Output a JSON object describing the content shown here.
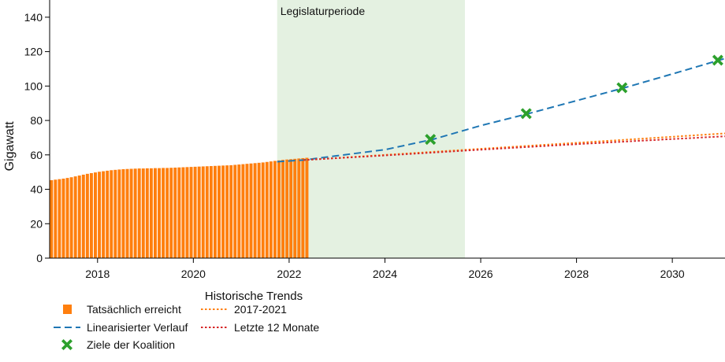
{
  "chart_data": {
    "type": "bar",
    "title": "",
    "xlabel": "",
    "ylabel": "Gigawatt",
    "xlim": [
      2017.0,
      2031.1
    ],
    "ylim": [
      0,
      150
    ],
    "yticks": [
      0,
      20,
      40,
      60,
      80,
      100,
      120,
      140
    ],
    "xticks": [
      2018,
      2020,
      2022,
      2024,
      2026,
      2028,
      2030
    ],
    "grid": false,
    "legend_title": "Historische Trends",
    "legend_position": "bottom-left",
    "shaded_region": {
      "label": "Legislaturperiode",
      "x_start": 2021.75,
      "x_end": 2025.67,
      "color": "#e4f1e1"
    },
    "series": [
      {
        "name": "Tatsächlich erreicht",
        "kind": "bar",
        "color": "#ff7f0e",
        "x_start": 2017.0,
        "x_step": 0.08333,
        "values": [
          45.3,
          45.6,
          45.9,
          46.2,
          46.6,
          47.0,
          47.5,
          48.0,
          48.5,
          49.0,
          49.4,
          49.8,
          50.2,
          50.5,
          50.8,
          51.1,
          51.3,
          51.5,
          51.7,
          51.8,
          51.9,
          52.0,
          52.1,
          52.1,
          52.2,
          52.2,
          52.3,
          52.3,
          52.4,
          52.4,
          52.5,
          52.6,
          52.7,
          52.8,
          52.9,
          53.0,
          53.1,
          53.2,
          53.3,
          53.4,
          53.5,
          53.6,
          53.7,
          53.8,
          53.9,
          54.0,
          54.2,
          54.4,
          54.6,
          54.8,
          55.0,
          55.2,
          55.4,
          55.6,
          55.9,
          56.2,
          56.5,
          56.8,
          57.1,
          57.3,
          57.5,
          57.7,
          57.9,
          58.1,
          58.3
        ]
      },
      {
        "name": "Linearisierter Verlauf",
        "kind": "line",
        "style": "dashed",
        "color": "#1f77b4",
        "x": [
          2021.75,
          2022.3,
          2023.0,
          2024.0,
          2025.0,
          2026.0,
          2027.0,
          2028.0,
          2029.0,
          2030.0,
          2031.1
        ],
        "y": [
          56.0,
          57.0,
          59.5,
          63.0,
          69.0,
          77.0,
          84.0,
          91.5,
          99.0,
          107.0,
          116.0
        ]
      },
      {
        "name": "2017-2021",
        "kind": "line",
        "style": "dotted",
        "color": "#ff7f0e",
        "x": [
          2022.3,
          2024.0,
          2026.0,
          2028.0,
          2030.0,
          2031.1
        ],
        "y": [
          57.0,
          60.0,
          63.5,
          67.0,
          70.5,
          72.5
        ]
      },
      {
        "name": "Letzte 12 Monate",
        "kind": "line",
        "style": "dotted",
        "color": "#d62728",
        "x": [
          2022.3,
          2024.0,
          2026.0,
          2028.0,
          2030.0,
          2031.1
        ],
        "y": [
          57.0,
          59.7,
          63.0,
          66.2,
          69.2,
          70.8
        ]
      },
      {
        "name": "Ziele der Koalition",
        "kind": "scatter",
        "marker": "x",
        "color": "#2ca02c",
        "x": [
          2024.95,
          2026.95,
          2028.95,
          2030.95
        ],
        "y": [
          69,
          84,
          99,
          115
        ]
      }
    ]
  }
}
